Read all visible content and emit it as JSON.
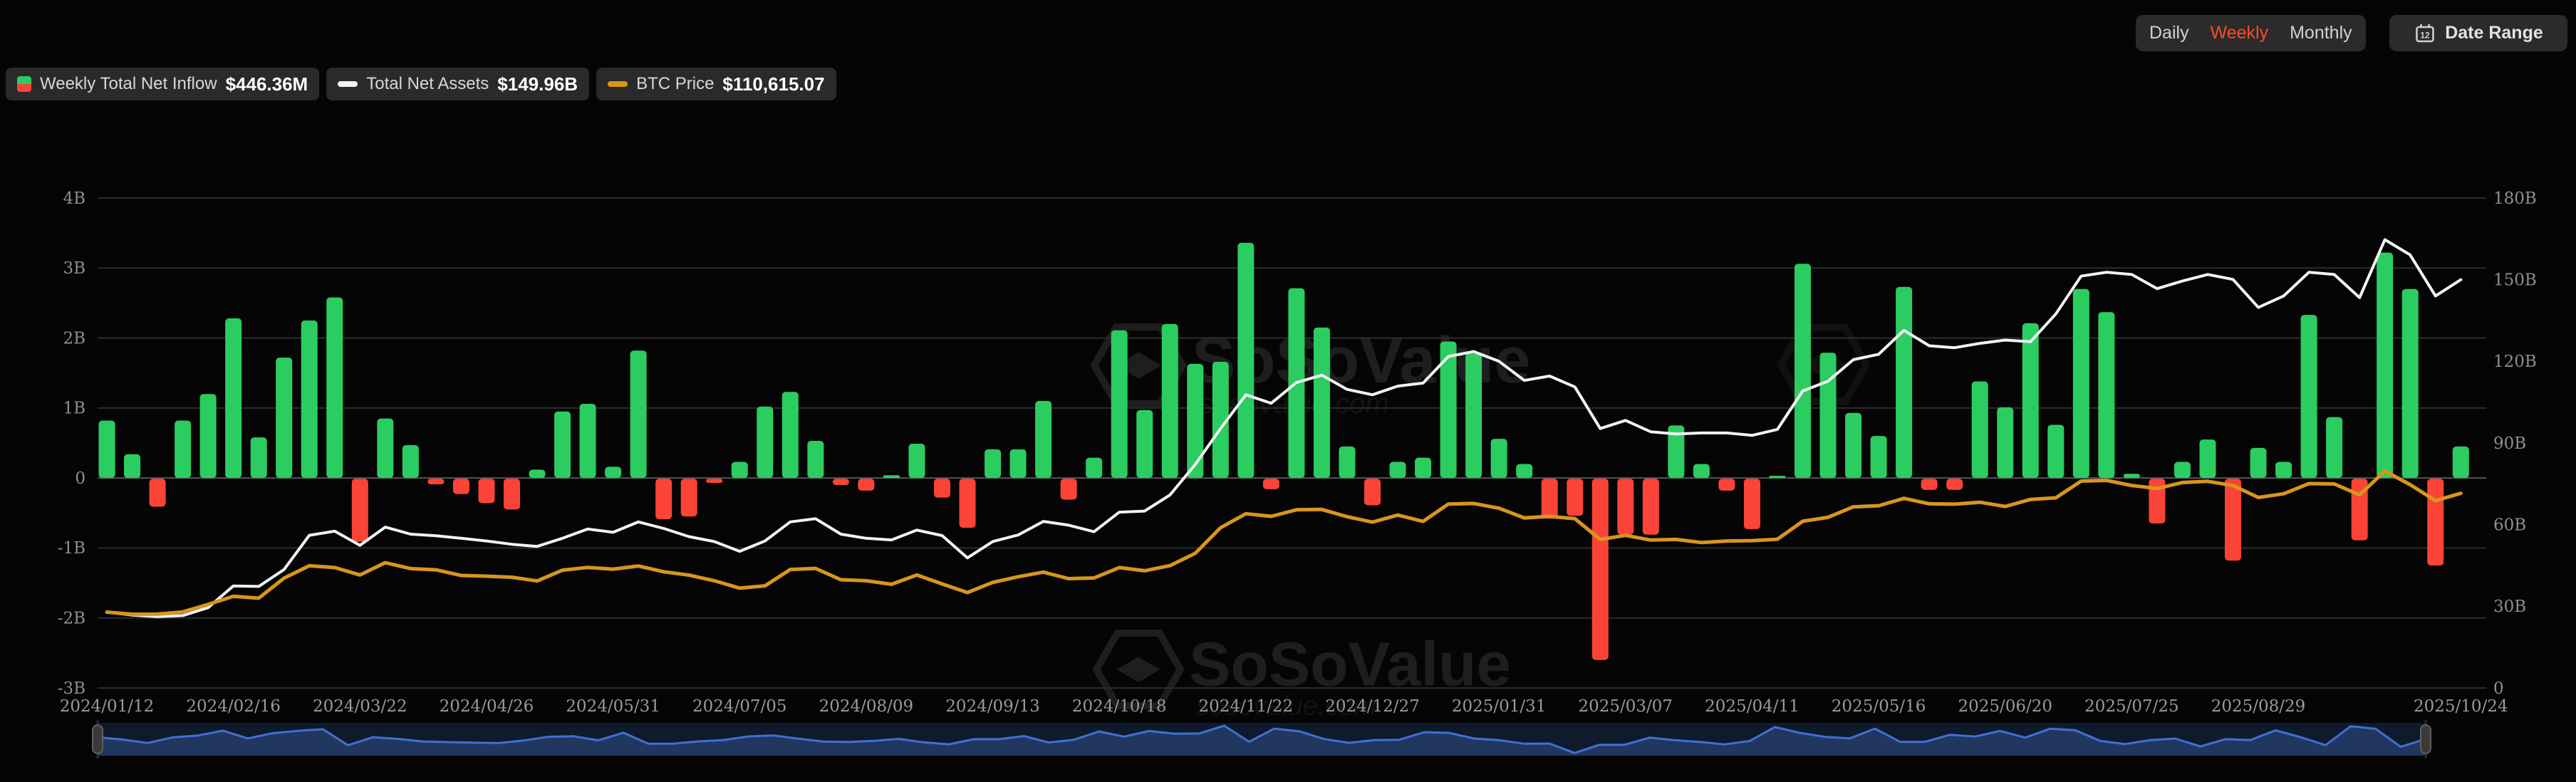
{
  "header": {
    "tabs": [
      {
        "label": "Daily",
        "active": false
      },
      {
        "label": "Weekly",
        "active": true
      },
      {
        "label": "Monthly",
        "active": false
      }
    ],
    "date_range_label": "Date Range",
    "calendar_icon_day": "12",
    "active_tab_color": "#ff4b28"
  },
  "legend": [
    {
      "label": "Weekly Total Net Inflow",
      "value": "$446.36M",
      "icon": "bar-chip-green-red"
    },
    {
      "label": "Total Net Assets",
      "value": "$149.96B",
      "icon": "white-line-chip"
    },
    {
      "label": "BTC Price",
      "value": "$110,615.07",
      "icon": "orange-line-chip"
    }
  ],
  "watermark": {
    "brand": "SoSoValue",
    "domain": "sosovalue.com"
  },
  "colors": {
    "background": "#050505",
    "inflow_positive": "#2bcd61",
    "inflow_negative": "#fb4337",
    "net_assets_line": "#f2f2f2",
    "btc_price_line": "#d8961b",
    "gridline": "#2c2c2c",
    "zero_line": "#565656",
    "nav_track": "#101a2d",
    "nav_area": "#22375f",
    "nav_line": "#4070d4"
  },
  "chart_data": {
    "type": "bar+line",
    "title": "Bitcoin Spot ETF Weekly Net Inflow vs Total Net Assets and BTC Price",
    "x_is_weekly": true,
    "x_start": "2024/01/12",
    "x_end": "2025/10/24",
    "points": 94,
    "x_ticks": [
      {
        "i": 0,
        "label": "2024/01/12"
      },
      {
        "i": 5,
        "label": "2024/02/16"
      },
      {
        "i": 10,
        "label": "2024/03/22"
      },
      {
        "i": 15,
        "label": "2024/04/26"
      },
      {
        "i": 20,
        "label": "2024/05/31"
      },
      {
        "i": 25,
        "label": "2024/07/05"
      },
      {
        "i": 30,
        "label": "2024/08/09"
      },
      {
        "i": 35,
        "label": "2024/09/13"
      },
      {
        "i": 40,
        "label": "2024/10/18"
      },
      {
        "i": 45,
        "label": "2024/11/22"
      },
      {
        "i": 50,
        "label": "2024/12/27"
      },
      {
        "i": 55,
        "label": "2025/01/31"
      },
      {
        "i": 60,
        "label": "2025/03/07"
      },
      {
        "i": 65,
        "label": "2025/04/11"
      },
      {
        "i": 70,
        "label": "2025/05/16"
      },
      {
        "i": 75,
        "label": "2025/06/20"
      },
      {
        "i": 80,
        "label": "2025/07/25"
      },
      {
        "i": 85,
        "label": "2025/08/29"
      },
      {
        "i": 93,
        "label": "2025/10/24"
      }
    ],
    "left_axis": {
      "min": -3,
      "max": 4,
      "ticks": [
        {
          "v": 4,
          "label": "4B"
        },
        {
          "v": 3,
          "label": "3B"
        },
        {
          "v": 2,
          "label": "2B"
        },
        {
          "v": 1,
          "label": "1B"
        },
        {
          "v": 0,
          "label": "0"
        },
        {
          "v": -1,
          "label": "-1B"
        },
        {
          "v": -2,
          "label": "-2B"
        },
        {
          "v": -3,
          "label": "-3B"
        }
      ]
    },
    "right_axis": {
      "min": 0,
      "max": 180,
      "ticks": [
        {
          "v": 180,
          "label": "180B"
        },
        {
          "v": 150,
          "label": "150B"
        },
        {
          "v": 120,
          "label": "120B"
        },
        {
          "v": 90,
          "label": "90B"
        },
        {
          "v": 60,
          "label": "60B"
        },
        {
          "v": 30,
          "label": "30B"
        },
        {
          "v": 0,
          "label": "0"
        }
      ]
    },
    "series": [
      {
        "name": "Weekly Total Net Inflow",
        "unit": "B USD",
        "axis": "left",
        "style": "bar",
        "latest": "$446.36M",
        "values": [
          0.82,
          0.34,
          -0.4,
          0.82,
          1.2,
          2.28,
          0.58,
          1.72,
          2.25,
          2.58,
          -0.9,
          0.85,
          0.47,
          -0.08,
          -0.22,
          -0.35,
          -0.44,
          0.12,
          0.95,
          1.06,
          0.16,
          1.82,
          -0.58,
          -0.54,
          -0.06,
          0.23,
          1.02,
          1.23,
          0.53,
          -0.09,
          -0.17,
          0.04,
          0.49,
          -0.27,
          -0.7,
          0.41,
          0.41,
          1.1,
          -0.3,
          0.29,
          2.11,
          0.97,
          2.2,
          1.63,
          1.66,
          3.36,
          -0.15,
          2.71,
          2.15,
          0.45,
          -0.38,
          0.23,
          0.29,
          1.95,
          1.78,
          0.56,
          0.2,
          -0.57,
          -0.53,
          -2.59,
          -0.8,
          -0.8,
          0.75,
          0.2,
          -0.17,
          -0.72,
          0.03,
          3.06,
          1.79,
          0.93,
          0.6,
          2.73,
          -0.16,
          -0.16,
          1.38,
          1.01,
          2.21,
          0.76,
          2.7,
          2.37,
          0.06,
          -0.64,
          0.23,
          0.55,
          -1.17,
          0.43,
          0.23,
          2.33,
          0.87,
          -0.88,
          3.22,
          2.7,
          -1.24,
          0.45
        ]
      },
      {
        "name": "Total Net Assets",
        "unit": "B USD",
        "axis": "right",
        "style": "line",
        "latest": "$149.96B",
        "values": [
          27.9,
          26.8,
          26.2,
          26.6,
          29.5,
          37.5,
          37.3,
          43.5,
          56.1,
          57.6,
          52.4,
          59.1,
          56.5,
          55.9,
          55.0,
          54.0,
          52.8,
          52.0,
          55.0,
          58.4,
          57.2,
          61.0,
          58.6,
          55.6,
          53.8,
          50.2,
          54.0,
          61.0,
          62.2,
          56.5,
          55.0,
          54.4,
          58.0,
          56.0,
          47.8,
          53.8,
          56.2,
          61.2,
          59.8,
          57.4,
          64.6,
          65.0,
          70.9,
          82.1,
          95.3,
          107.7,
          104.6,
          112.2,
          114.9,
          109.7,
          107.7,
          110.9,
          112.0,
          121.8,
          123.6,
          120.0,
          113.0,
          114.6,
          110.6,
          95.3,
          98.3,
          94.1,
          93.3,
          93.7,
          93.7,
          92.8,
          95.0,
          109.1,
          112.7,
          120.6,
          122.6,
          131.4,
          125.7,
          125.0,
          126.6,
          127.8,
          127.2,
          137.4,
          151.3,
          152.7,
          151.9,
          146.7,
          149.5,
          151.9,
          150.1,
          139.8,
          144.0,
          152.7,
          151.9,
          143.4,
          164.7,
          159.1,
          144.0,
          150.0
        ]
      },
      {
        "name": "BTC Price",
        "unit": "k USD",
        "axis": "hidden",
        "style": "line",
        "latest": "$110,615.07",
        "plot_scale_max_k": 278.3,
        "values": [
          43.1,
          41.9,
          42.0,
          43.2,
          47.5,
          52.1,
          51.0,
          62.4,
          69.4,
          68.4,
          64.2,
          71.2,
          67.8,
          67.1,
          63.9,
          63.5,
          62.9,
          60.8,
          66.9,
          68.5,
          67.5,
          69.3,
          66.0,
          64.1,
          60.9,
          56.7,
          58.0,
          67.3,
          67.9,
          61.5,
          60.9,
          58.9,
          64.2,
          59.1,
          54.2,
          60.0,
          63.2,
          65.8,
          62.1,
          62.5,
          68.4,
          66.6,
          69.5,
          76.5,
          91.0,
          99.0,
          97.5,
          101.2,
          101.4,
          97.3,
          94.2,
          98.2,
          94.6,
          104.5,
          104.8,
          102.1,
          96.6,
          97.5,
          96.2,
          84.4,
          86.7,
          84.0,
          84.4,
          82.6,
          83.5,
          83.7,
          84.5,
          94.7,
          96.9,
          102.9,
          103.5,
          107.7,
          104.6,
          104.4,
          105.5,
          103.1,
          107.1,
          108.0,
          117.5,
          117.9,
          115.0,
          113.3,
          116.7,
          117.4,
          115.0,
          108.2,
          110.3,
          116.1,
          115.9,
          109.7,
          123.2,
          115.5,
          106.4,
          110.6
        ]
      }
    ],
    "legend_position": "top-left",
    "grid": "horizontal-only"
  },
  "navigator": {
    "type": "range-selector",
    "series": "inflow",
    "handles": 2
  }
}
